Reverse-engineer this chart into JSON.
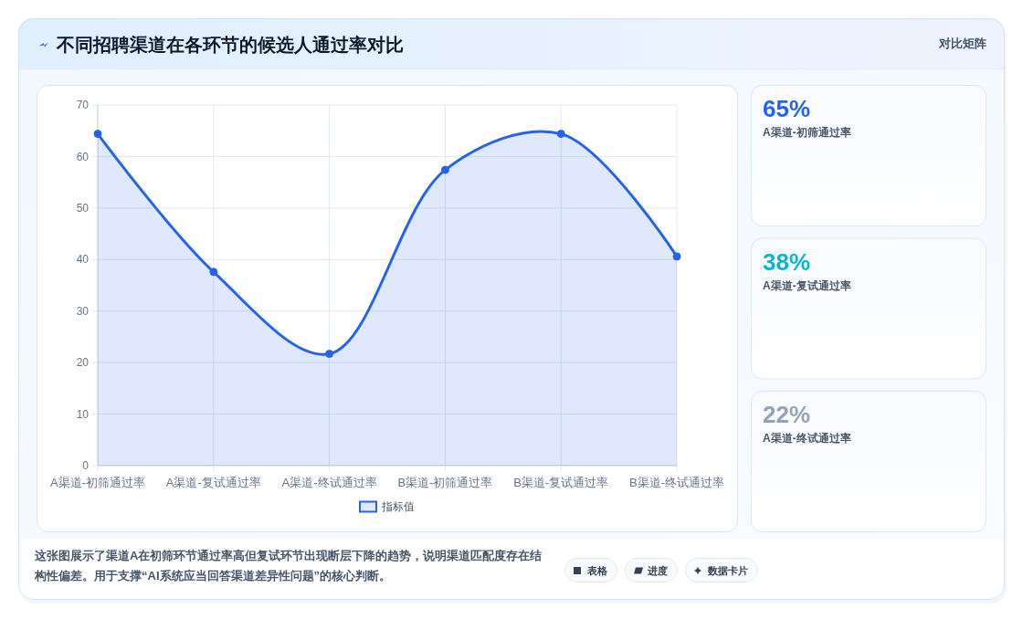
{
  "chart_data": [
    {
      "type": "area",
      "title": "不同招聘渠道在各环节的候选人通过率对比",
      "categories": [
        "A渠道-初筛通过率",
        "A渠道-复试通过率",
        "A渠道-终试通过率",
        "B渠道-初筛通过率",
        "B渠道-复试通过率",
        "B渠道-终试通过率"
      ],
      "series": [
        {
          "name": "指标值",
          "color": "#2563eb",
          "values": [
            64.4,
            37.6,
            21.7,
            57.4,
            64.4,
            40.6
          ]
        }
      ],
      "ylim": [
        0,
        70
      ],
      "yticks": [
        0,
        10,
        20,
        30,
        40,
        50,
        60,
        70
      ],
      "grid": true,
      "legend": "bottom",
      "marker": "circle",
      "annotations": [
        "这张图展示了渠道A在初筛环节通过率高但复试环节出现断层下降的趋势，说明渠道匹配度存在结构性偏差。用于支撑“AI系统应当回答渠道差异性问题”的核心判断。",
        "表格",
        "进度",
        "数据卡片"
      ]
    },
    {
      "type": "other",
      "title": "对比矩阵",
      "annotations": [
        "65%",
        "A渠道-初筛通过率",
        "38%",
        "A渠道-复试通过率",
        "22%",
        "A渠道-终试通过率"
      ]
    }
  ]
}
